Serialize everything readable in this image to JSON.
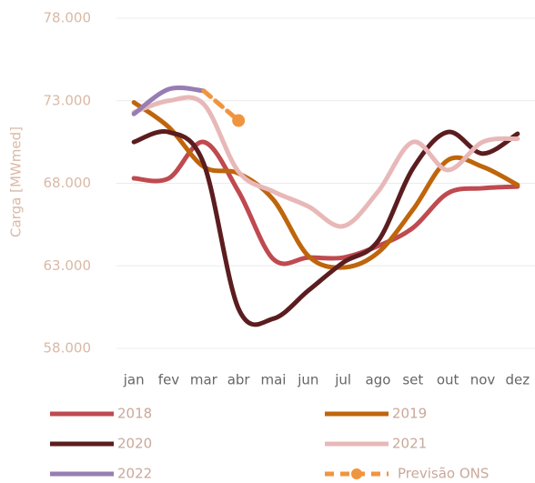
{
  "chart_data": {
    "type": "line",
    "y_label": "Carga [MWmed]",
    "categories": [
      "jan",
      "fev",
      "mar",
      "abr",
      "mai",
      "jun",
      "jul",
      "ago",
      "set",
      "out",
      "nov",
      "dez"
    ],
    "ylim": [
      58000,
      78000
    ],
    "yticks": [
      {
        "value": 58000,
        "label": "58.000"
      },
      {
        "value": 63000,
        "label": "63.000"
      },
      {
        "value": 68000,
        "label": "68.000"
      },
      {
        "value": 73000,
        "label": "73.000"
      },
      {
        "value": 78000,
        "label": "78.000"
      }
    ],
    "grid": true,
    "series": [
      {
        "name": "2018",
        "color": "#bf4a50",
        "values": [
          68300,
          68300,
          70500,
          67500,
          63400,
          63500,
          63500,
          64200,
          65300,
          67400,
          67700,
          67800
        ]
      },
      {
        "name": "2019",
        "color": "#bf650c",
        "values": [
          72900,
          71400,
          69000,
          68600,
          67000,
          63600,
          62900,
          63800,
          66400,
          69400,
          69000,
          67900
        ]
      },
      {
        "name": "2020",
        "color": "#5b1d1f",
        "values": [
          70500,
          71100,
          69200,
          60400,
          59800,
          61500,
          63200,
          64500,
          68900,
          71100,
          69800,
          71000
        ]
      },
      {
        "name": "2021",
        "color": "#e8b8b8",
        "values": [
          72300,
          73000,
          72800,
          68700,
          67500,
          66600,
          65400,
          67500,
          70500,
          68800,
          70500,
          70700
        ]
      },
      {
        "name": "2022",
        "color": "#977db3",
        "values": [
          72200,
          73700,
          73600,
          null,
          null,
          null,
          null,
          null,
          null,
          null,
          null,
          null
        ]
      },
      {
        "name": "Previsão ONS",
        "color": "#f0953f",
        "dashed": true,
        "marker": "circle",
        "values": [
          null,
          null,
          73600,
          71800,
          null,
          null,
          null,
          null,
          null,
          null,
          null,
          null
        ]
      }
    ]
  }
}
